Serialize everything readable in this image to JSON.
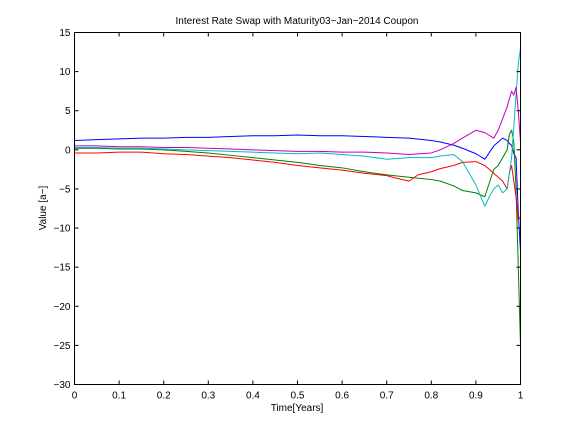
{
  "chart_data": {
    "type": "line",
    "title": "Interest Rate Swap with Maturity03−Jan−2014 Coupon",
    "xlabel": "Time[Years]",
    "ylabel": "Value [a−]",
    "xlim": [
      0,
      1
    ],
    "ylim": [
      -30,
      15
    ],
    "xticks": [
      0,
      0.1,
      0.2,
      0.3,
      0.4,
      0.5,
      0.6,
      0.7,
      0.8,
      0.9,
      1
    ],
    "xtick_labels": [
      "0",
      "0.1",
      "0.2",
      "0.3",
      "0.4",
      "0.5",
      "0.6",
      "0.7",
      "0.8",
      "0.9",
      "1"
    ],
    "yticks": [
      15,
      10,
      5,
      0,
      -5,
      -10,
      -15,
      -20,
      -25,
      -30
    ],
    "ytick_labels": [
      "15",
      "10",
      "5",
      "0",
      "−5",
      "−10",
      "−15",
      "−20",
      "−25",
      "−30"
    ],
    "grid": false,
    "legend": false,
    "series": [
      {
        "color": "#0000ff",
        "x": [
          0,
          0.05,
          0.1,
          0.15,
          0.2,
          0.25,
          0.3,
          0.35,
          0.4,
          0.45,
          0.5,
          0.55,
          0.6,
          0.65,
          0.7,
          0.75,
          0.8,
          0.82,
          0.85,
          0.87,
          0.9,
          0.92,
          0.94,
          0.95,
          0.96,
          0.97,
          0.975,
          0.98,
          0.985,
          0.99,
          0.995,
          1.0
        ],
        "y": [
          1.2,
          1.3,
          1.4,
          1.5,
          1.5,
          1.6,
          1.6,
          1.7,
          1.8,
          1.8,
          1.9,
          1.8,
          1.8,
          1.7,
          1.6,
          1.5,
          1.2,
          1.0,
          0.6,
          0.2,
          -0.5,
          -1.2,
          0.5,
          1.0,
          1.5,
          1.2,
          0.8,
          0.6,
          -0.5,
          -1.0,
          -8.0,
          -13.0
        ]
      },
      {
        "color": "#008000",
        "x": [
          0,
          0.05,
          0.1,
          0.15,
          0.2,
          0.25,
          0.3,
          0.35,
          0.4,
          0.45,
          0.5,
          0.55,
          0.6,
          0.65,
          0.7,
          0.75,
          0.8,
          0.82,
          0.85,
          0.87,
          0.9,
          0.92,
          0.94,
          0.95,
          0.96,
          0.97,
          0.975,
          0.98,
          0.985,
          0.99,
          0.995,
          1.0
        ],
        "y": [
          0.2,
          0.2,
          0.1,
          0.1,
          0.0,
          -0.2,
          -0.4,
          -0.7,
          -1.0,
          -1.3,
          -1.6,
          -2.0,
          -2.3,
          -2.8,
          -3.2,
          -3.5,
          -3.8,
          -4.0,
          -4.6,
          -5.2,
          -5.5,
          -6.0,
          -2.5,
          -2.0,
          -1.0,
          0.0,
          2.0,
          2.5,
          1.0,
          -5.0,
          -15.0,
          -25.0
        ]
      },
      {
        "color": "#ff0000",
        "x": [
          0,
          0.05,
          0.1,
          0.15,
          0.2,
          0.25,
          0.3,
          0.35,
          0.4,
          0.45,
          0.5,
          0.55,
          0.6,
          0.65,
          0.7,
          0.72,
          0.75,
          0.77,
          0.8,
          0.82,
          0.85,
          0.87,
          0.9,
          0.92,
          0.94,
          0.95,
          0.96,
          0.97,
          0.975,
          0.98,
          0.985,
          0.99,
          0.995,
          1.0
        ],
        "y": [
          -0.4,
          -0.4,
          -0.3,
          -0.3,
          -0.5,
          -0.6,
          -0.8,
          -1.0,
          -1.3,
          -1.6,
          -2.0,
          -2.3,
          -2.6,
          -3.0,
          -3.3,
          -3.6,
          -4.0,
          -3.2,
          -2.8,
          -2.4,
          -2.0,
          -1.6,
          -1.5,
          -2.0,
          -3.0,
          -3.5,
          -4.0,
          -5.0,
          -3.0,
          -2.0,
          -4.0,
          -6.0,
          -9.0,
          -8.5
        ]
      },
      {
        "color": "#00bfbf",
        "x": [
          0,
          0.05,
          0.1,
          0.15,
          0.2,
          0.25,
          0.3,
          0.35,
          0.4,
          0.45,
          0.5,
          0.55,
          0.6,
          0.65,
          0.7,
          0.75,
          0.8,
          0.82,
          0.85,
          0.87,
          0.9,
          0.92,
          0.93,
          0.94,
          0.95,
          0.96,
          0.97,
          0.975,
          0.98,
          0.985,
          0.99,
          0.995,
          1.0
        ],
        "y": [
          0.3,
          0.3,
          0.2,
          0.2,
          0.1,
          0.0,
          -0.1,
          -0.2,
          -0.3,
          -0.4,
          -0.5,
          -0.4,
          -0.6,
          -0.8,
          -1.2,
          -1.0,
          -1.0,
          -0.8,
          -0.6,
          -1.5,
          -4.5,
          -7.2,
          -6.0,
          -5.0,
          -4.5,
          -5.5,
          -5.0,
          -3.0,
          -1.0,
          3.0,
          7.0,
          11.0,
          13.0
        ]
      },
      {
        "color": "#bf00bf",
        "x": [
          0,
          0.05,
          0.1,
          0.15,
          0.2,
          0.25,
          0.3,
          0.35,
          0.4,
          0.45,
          0.5,
          0.55,
          0.6,
          0.65,
          0.7,
          0.75,
          0.8,
          0.82,
          0.85,
          0.87,
          0.9,
          0.92,
          0.94,
          0.95,
          0.96,
          0.97,
          0.975,
          0.98,
          0.985,
          0.99,
          0.995,
          1.0
        ],
        "y": [
          0.5,
          0.5,
          0.4,
          0.4,
          0.3,
          0.3,
          0.2,
          0.1,
          0.0,
          -0.1,
          -0.2,
          -0.2,
          -0.3,
          -0.3,
          -0.4,
          -0.6,
          -0.4,
          0.0,
          0.8,
          1.5,
          2.5,
          2.2,
          1.5,
          2.5,
          4.0,
          5.5,
          6.5,
          7.5,
          7.0,
          8.0,
          5.0,
          1.0
        ]
      }
    ]
  }
}
